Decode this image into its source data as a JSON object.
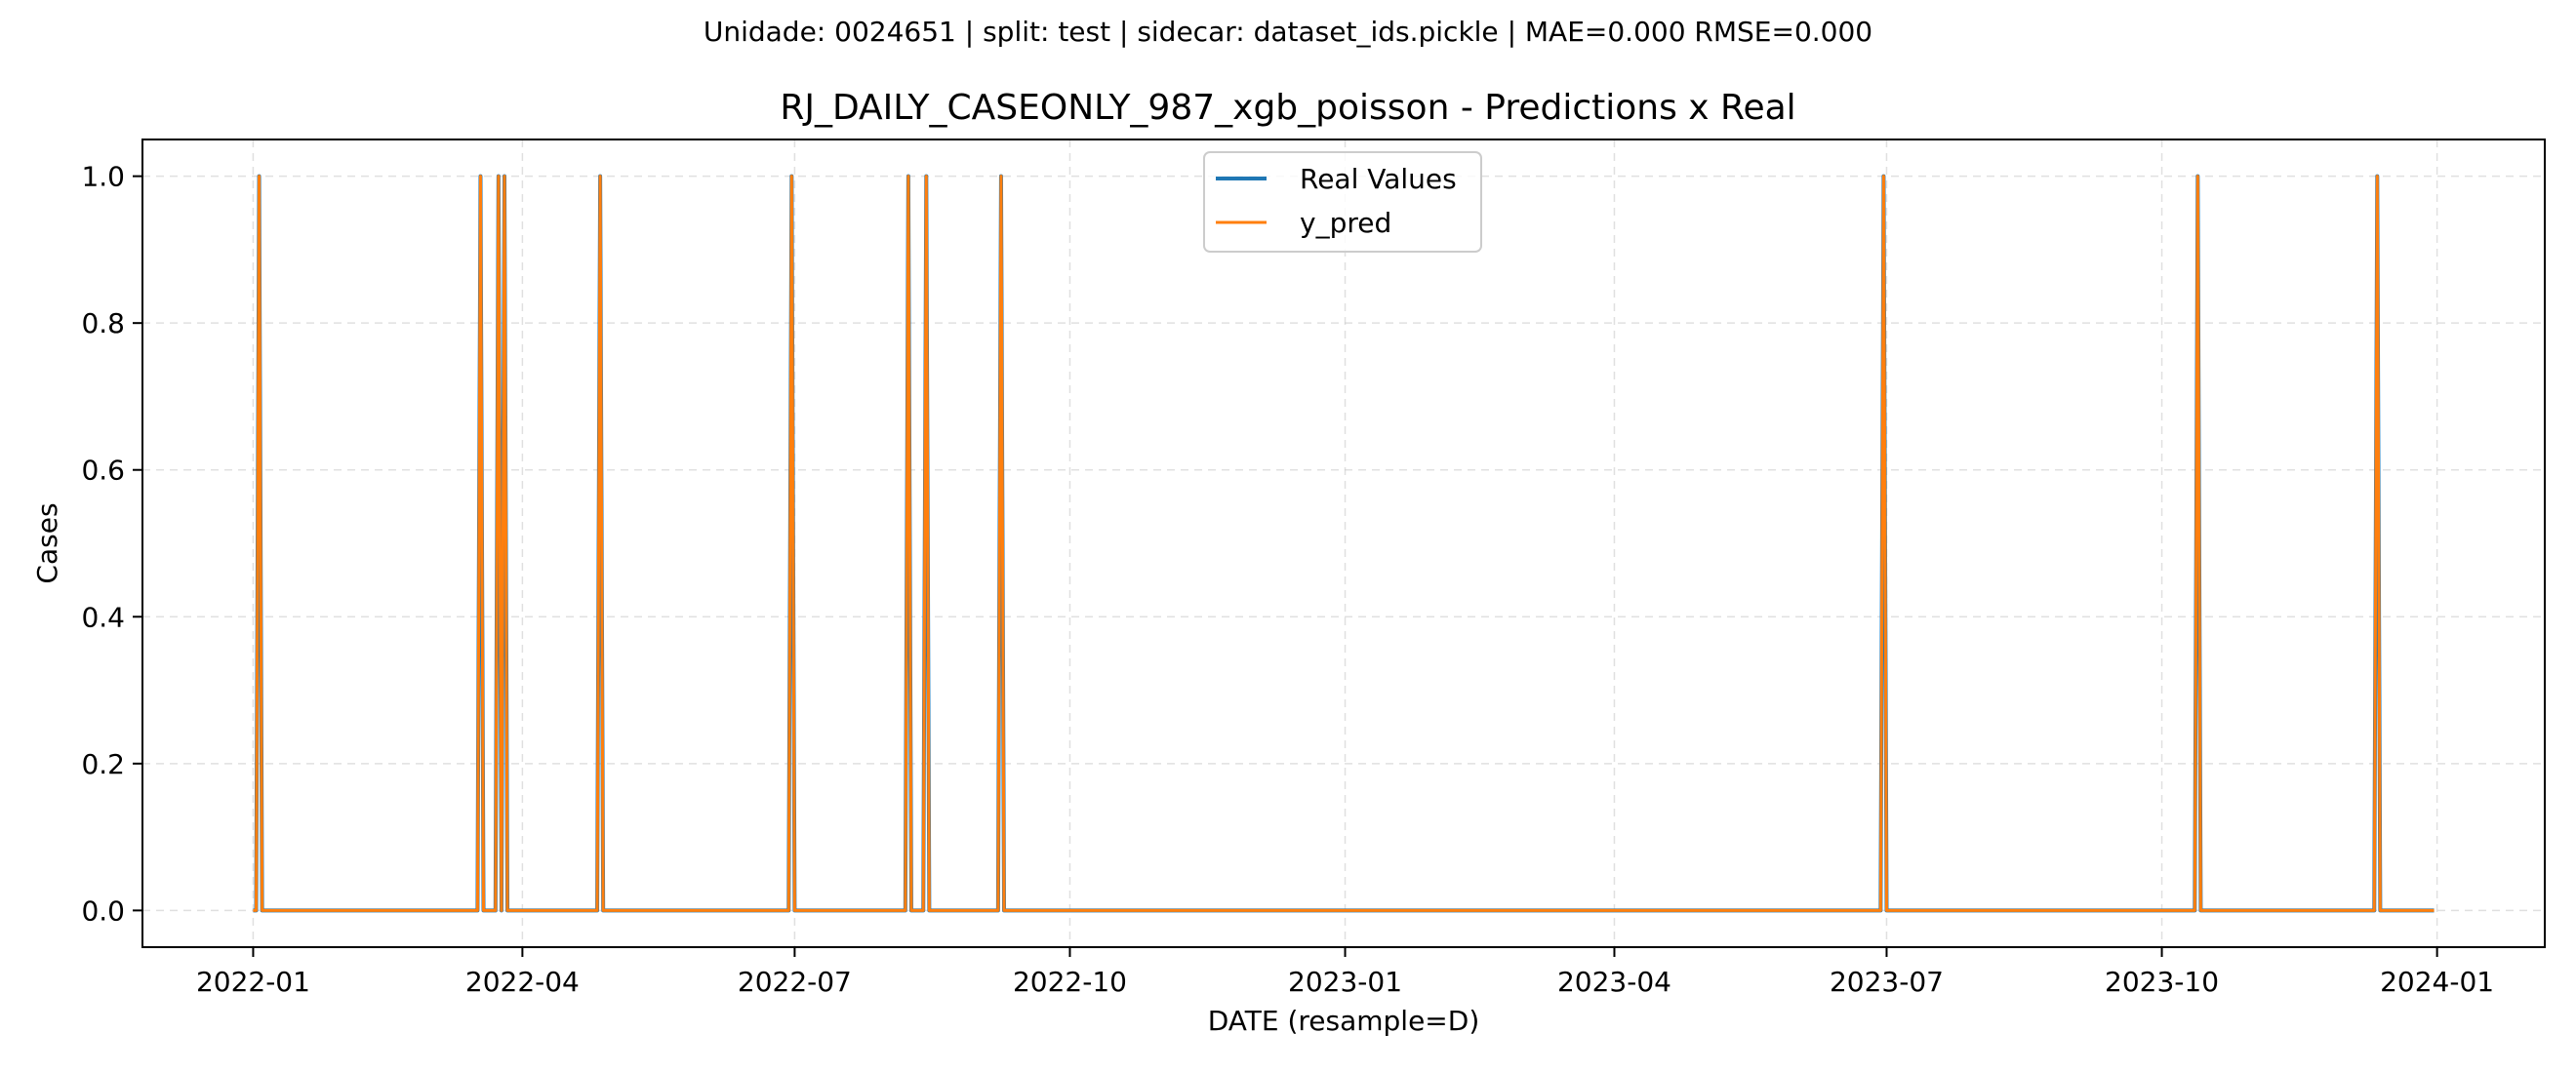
{
  "chart_data": {
    "type": "line",
    "suptitle": "Unidade: 0024651 | split: test | sidecar: dataset_ids.pickle | MAE=0.000  RMSE=0.000",
    "title": "RJ_DAILY_CASEONLY_987_xgb_poisson - Predictions x Real",
    "xlabel": "DATE (resample=D)",
    "ylabel": "Cases",
    "x_range": [
      "2022-01-01",
      "2023-12-31"
    ],
    "xlim": [
      "2021-11-25",
      "2024-02-06"
    ],
    "ylim": [
      -0.05,
      1.05
    ],
    "x_ticks": [
      "2022-01-01",
      "2022-04-01",
      "2022-07-01",
      "2022-10-01",
      "2023-01-01",
      "2023-04-01",
      "2023-07-01",
      "2023-10-01",
      "2024-01-01"
    ],
    "x_tick_labels": [
      "2022-01",
      "2022-04",
      "2022-07",
      "2022-10",
      "2023-01",
      "2023-04",
      "2023-07",
      "2023-10",
      "2024-01"
    ],
    "y_ticks": [
      0.0,
      0.2,
      0.4,
      0.6,
      0.8,
      1.0
    ],
    "y_tick_labels": [
      "0.0",
      "0.2",
      "0.4",
      "0.6",
      "0.8",
      "1.0"
    ],
    "grid": true,
    "legend_position": "top-center",
    "series": [
      {
        "name": "Real Values",
        "color": "#1f77b4",
        "baseline": 0,
        "spike_dates": [
          "2022-01-03",
          "2022-03-18",
          "2022-03-24",
          "2022-03-26",
          "2022-04-27",
          "2022-06-30",
          "2022-08-08",
          "2022-08-14",
          "2022-09-08",
          "2023-06-30",
          "2023-10-13",
          "2023-12-12"
        ],
        "spike_value": 1
      },
      {
        "name": "y_pred",
        "color": "#ff7f0e",
        "baseline": 0,
        "spike_dates": [
          "2022-01-03",
          "2022-03-18",
          "2022-03-24",
          "2022-03-26",
          "2022-04-27",
          "2022-06-30",
          "2022-08-08",
          "2022-08-14",
          "2022-09-08",
          "2023-06-30",
          "2023-10-13",
          "2023-12-12"
        ],
        "spike_value": 1
      }
    ]
  }
}
